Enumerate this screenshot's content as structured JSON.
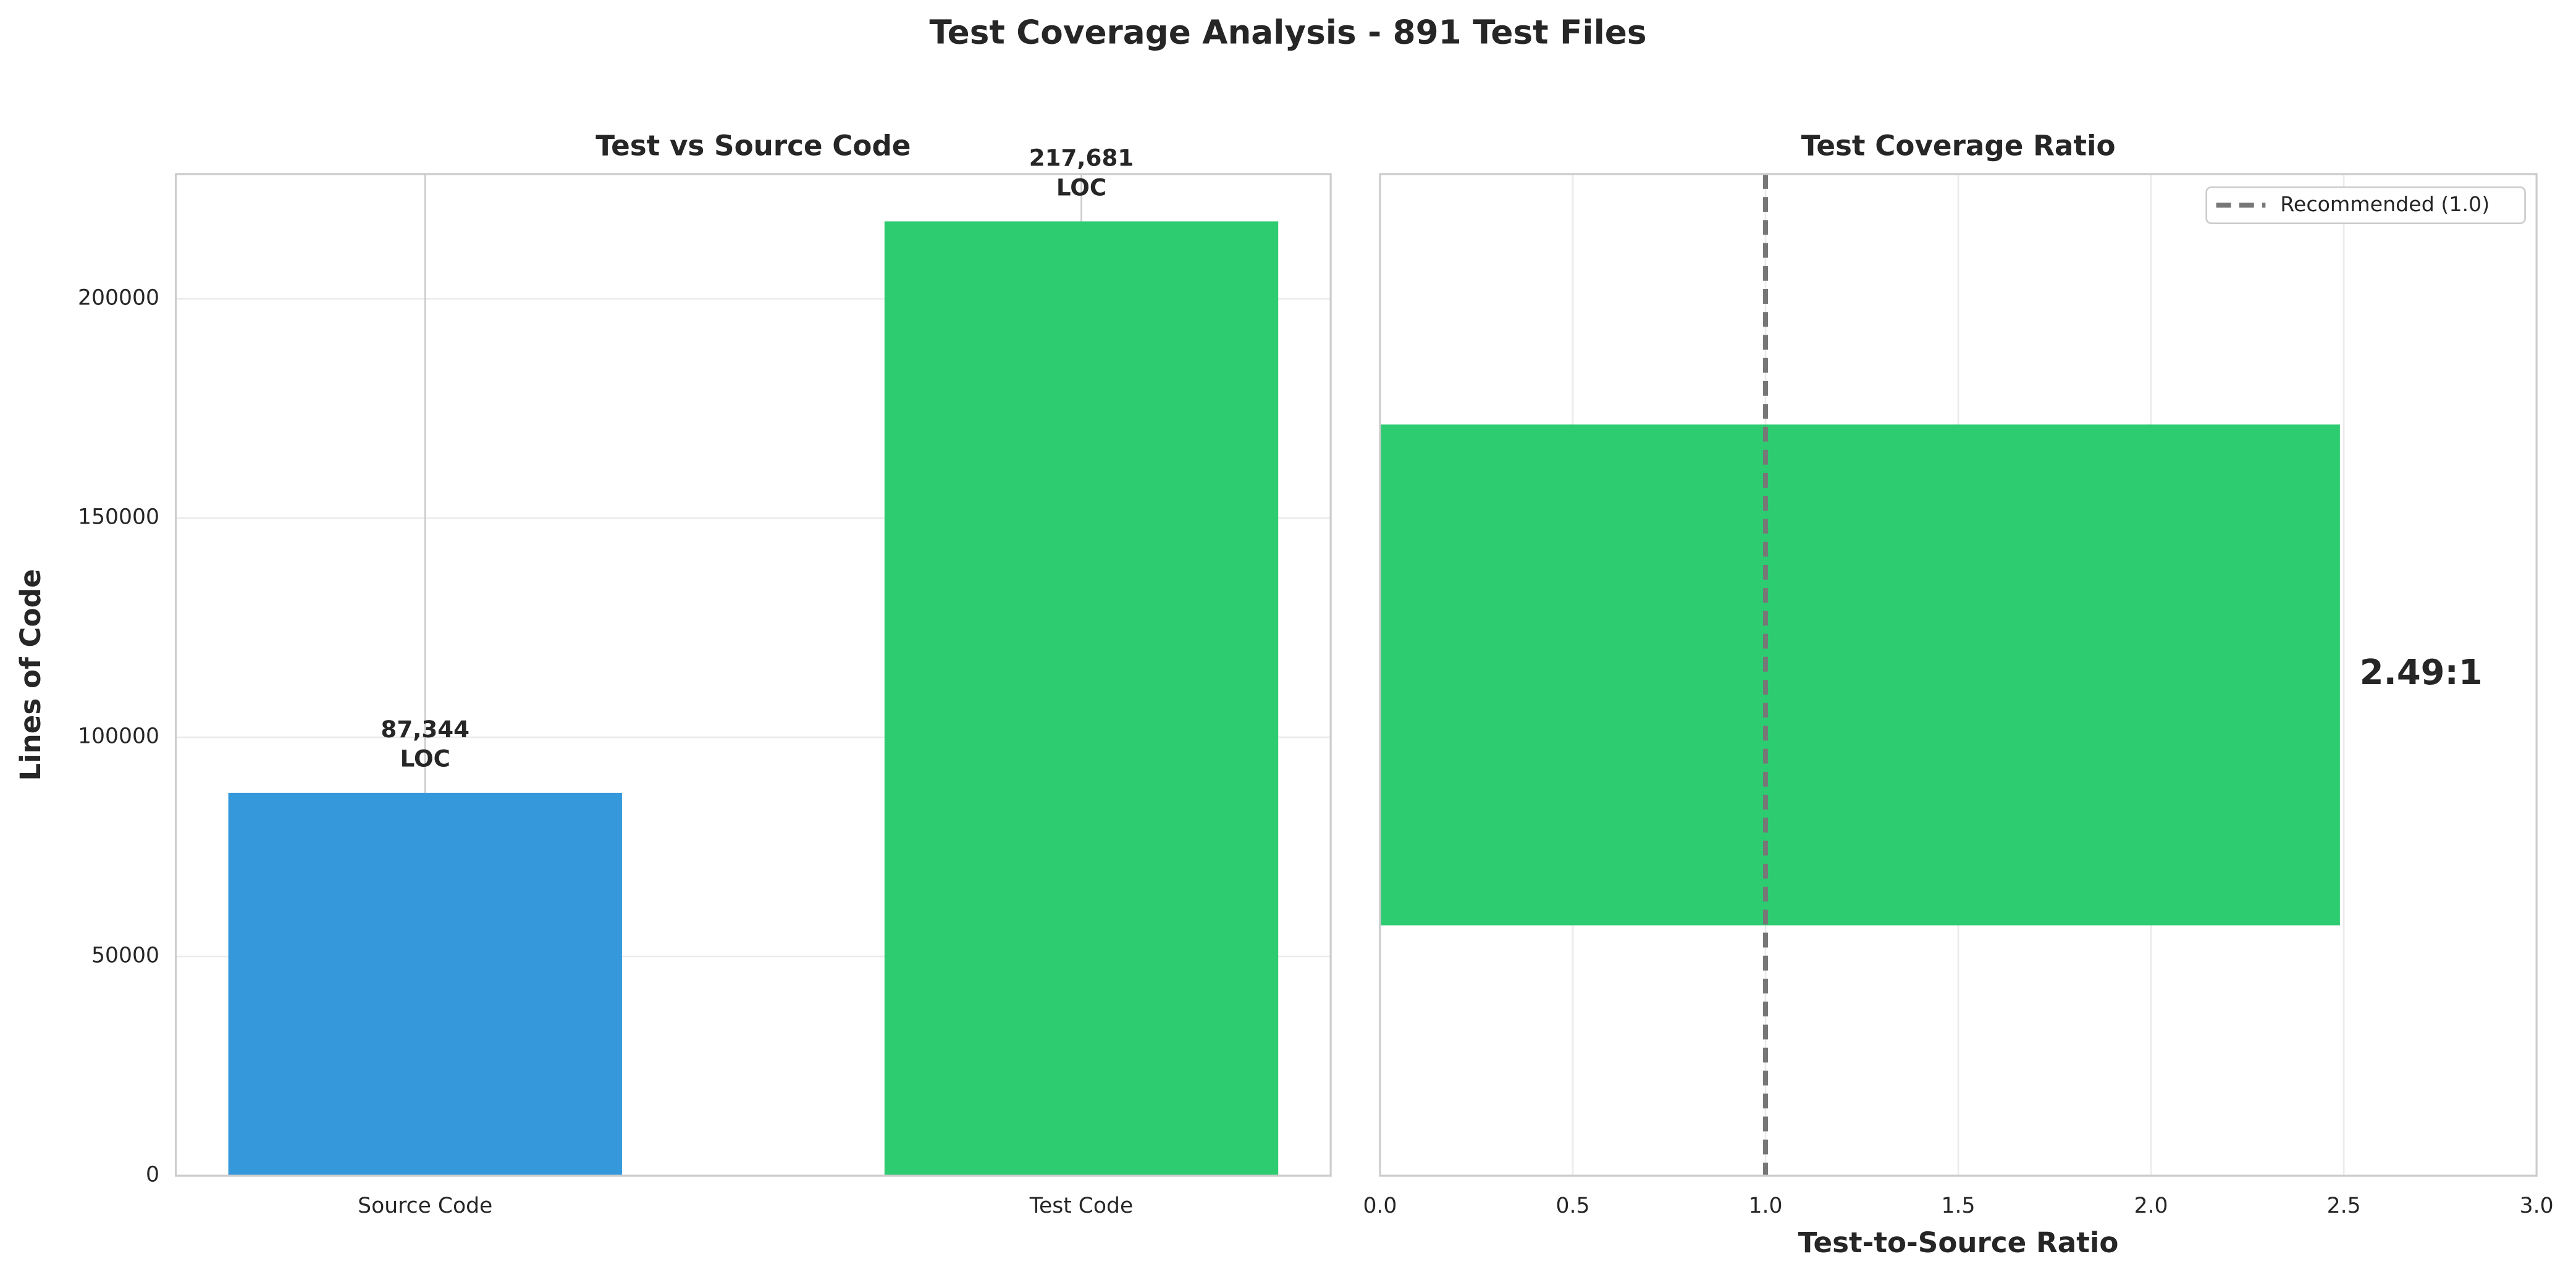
{
  "title": "Test Coverage Analysis - 891 Test Files",
  "chart_data": [
    {
      "type": "bar",
      "title": "Test vs Source Code",
      "ylabel": "Lines of Code",
      "categories": [
        "Source Code",
        "Test Code"
      ],
      "values": [
        87344,
        217681
      ],
      "value_labels": [
        "87,344\nLOC",
        "217,681\nLOC"
      ],
      "colors": [
        "#3498db",
        "#2ecc71"
      ],
      "ylim": [
        0,
        228464
      ],
      "yticks": [
        0,
        50000,
        100000,
        150000,
        200000
      ],
      "grid": true
    },
    {
      "type": "barh",
      "title": "Test Coverage Ratio",
      "xlabel": "Test-to-Source Ratio",
      "categories": [
        null
      ],
      "values": [
        2.49
      ],
      "value_labels": [
        "2.49:1"
      ],
      "color": "#2ecc71",
      "xlim": [
        0,
        3
      ],
      "xticks": [
        {
          "value": 0,
          "label": "0.0"
        },
        0.5,
        {
          "value": 1,
          "label": "1.0"
        },
        1.5,
        {
          "value": 2,
          "label": "2.0"
        },
        2.5,
        {
          "value": 3,
          "label": "3.0"
        }
      ],
      "grid": true,
      "reference": {
        "value": 1,
        "label": "Recommended (1.0)",
        "color": "#777777"
      },
      "legend": "upper right"
    }
  ]
}
